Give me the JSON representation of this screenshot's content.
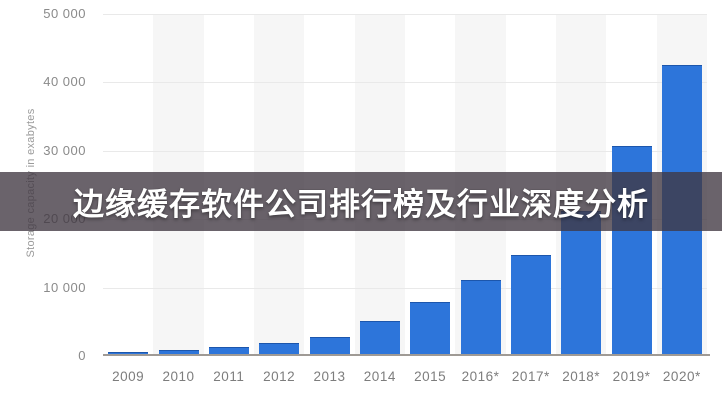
{
  "overlay": {
    "title": "边缘缓存软件公司排行榜及行业深度分析",
    "bg_color": "rgba(64,55,65,0.78)",
    "text_color": "#ffffff"
  },
  "chart_data": {
    "type": "bar",
    "title": "",
    "xlabel": "",
    "ylabel": "Storage capacity in exabytes",
    "categories": [
      "2009",
      "2010",
      "2011",
      "2012",
      "2013",
      "2014",
      "2015",
      "2016*",
      "2017*",
      "2018*",
      "2019*",
      "2020*"
    ],
    "values": [
      400,
      800,
      1200,
      1750,
      2600,
      4900,
      7800,
      11000,
      14600,
      21000,
      30500,
      42400
    ],
    "ylim": [
      0,
      50000
    ],
    "yticks": [
      0,
      10000,
      20000,
      30000,
      40000,
      50000
    ],
    "ytick_labels": [
      "0",
      "10 000",
      "20 000",
      "30 000",
      "40 000",
      "50 000"
    ],
    "grid": true,
    "legend": null,
    "bar_color": "#2d75da",
    "alt_band_color": "#f6f6f6",
    "gridline_color": "#e9e9e9",
    "axis_line_color": "#9f9a95",
    "tick_text_color": "#8a8a8a"
  }
}
